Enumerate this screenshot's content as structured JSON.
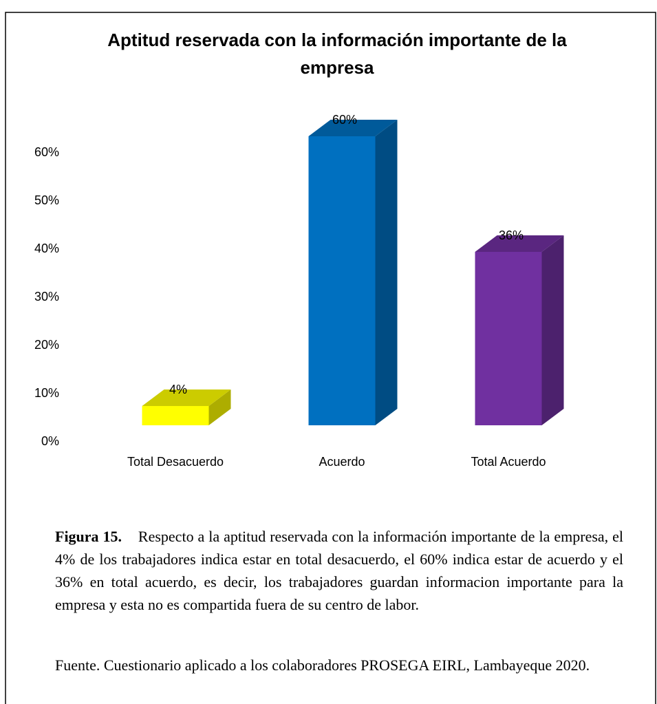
{
  "chart_data": {
    "type": "bar3d",
    "title": "Aptitud reservada con la información importante de la empresa",
    "categories": [
      "Total Desacuerdo",
      "Acuerdo",
      "Total Acuerdo"
    ],
    "values": [
      4,
      60,
      36
    ],
    "value_labels": [
      "4%",
      "60%",
      "36%"
    ],
    "colors": [
      "#ffff00",
      "#0070c0",
      "#7030a0"
    ],
    "ylim": [
      0,
      60
    ],
    "yticks": [
      {
        "value": 0,
        "label": "0%"
      },
      {
        "value": 10,
        "label": "10%"
      },
      {
        "value": 20,
        "label": "20%"
      },
      {
        "value": 30,
        "label": "30%"
      },
      {
        "value": 40,
        "label": "40%"
      },
      {
        "value": 50,
        "label": "50%"
      },
      {
        "value": 60,
        "label": "60%"
      }
    ],
    "grid": false
  },
  "figure_label": "Figura 15.",
  "figure_caption": "Respecto a la aptitud reservada con la información importante de la empresa, el 4% de los trabajadores indica estar en total desacuerdo, el 60% indica estar de acuerdo y el 36% en total acuerdo, es decir, los trabajadores guardan informacion importante para la empresa y esta no es compartida fuera de su centro de labor.",
  "source": "Fuente. Cuestionario aplicado a los colaboradores PROSEGA EIRL, Lambayeque 2020."
}
